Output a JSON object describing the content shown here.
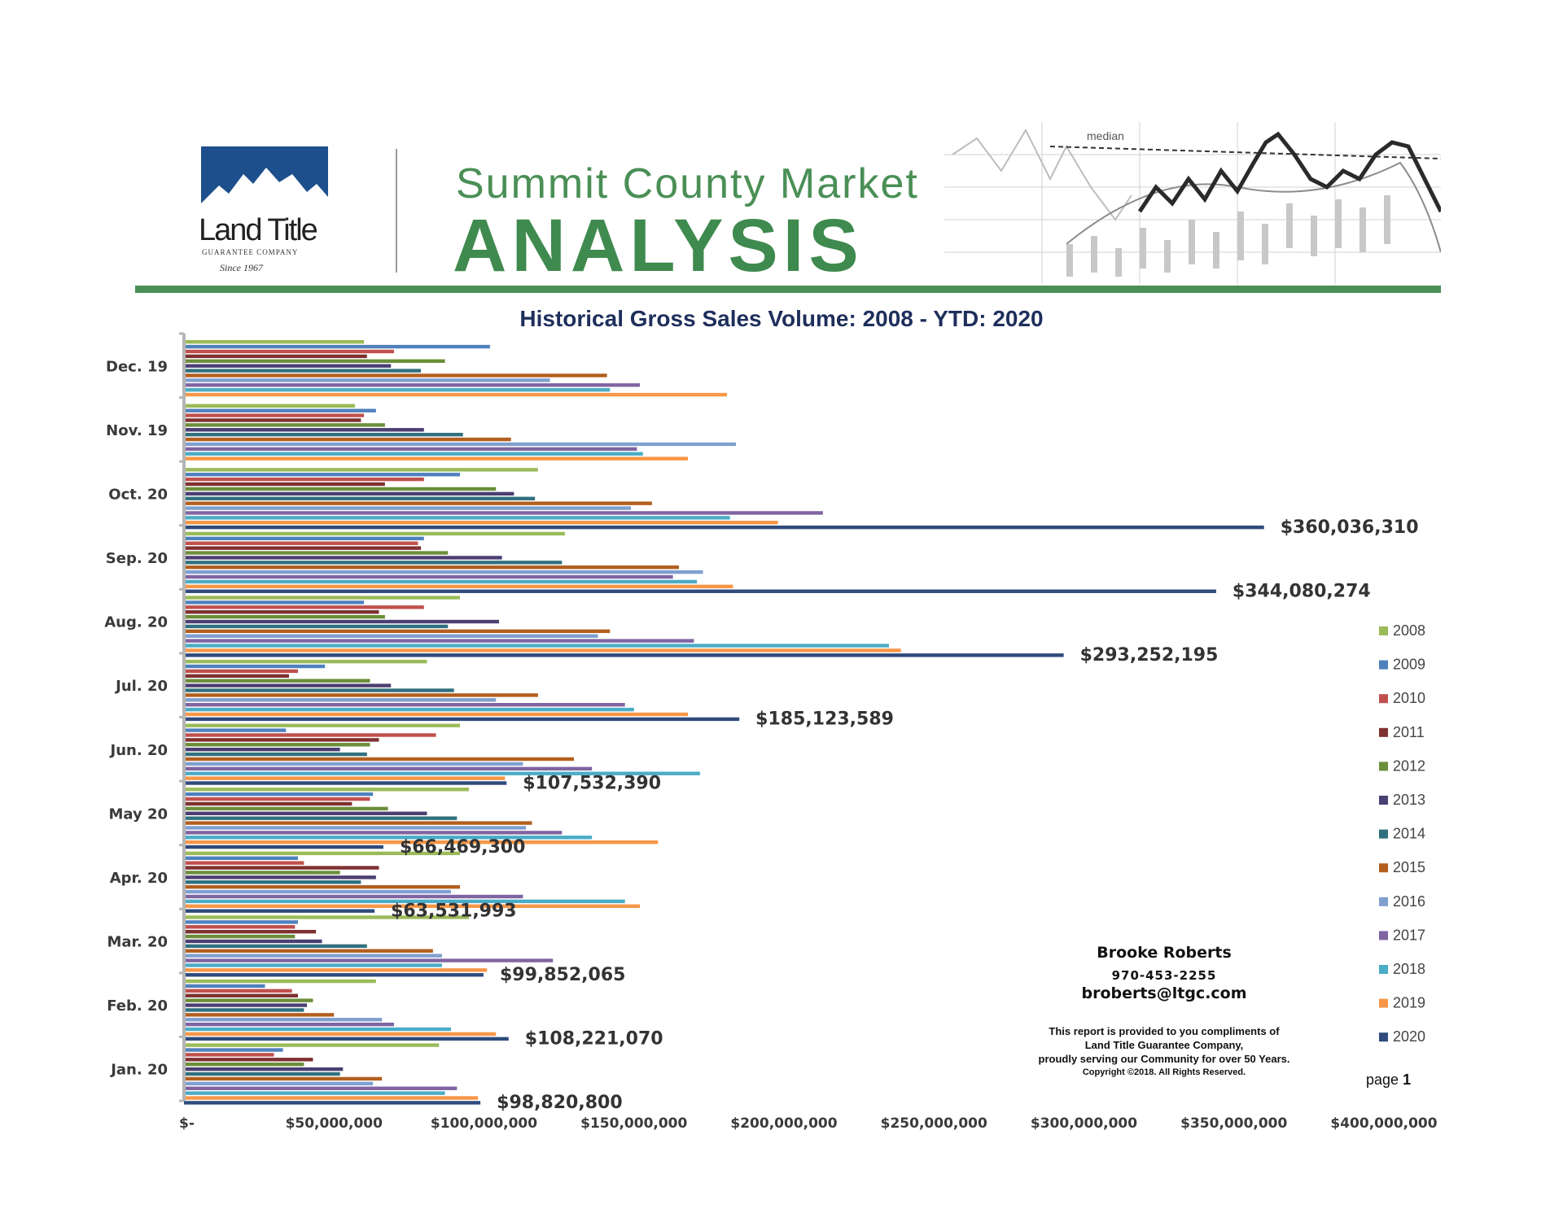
{
  "header": {
    "brand": "Land Title",
    "brand_sub": "GUARANTEE COMPANY",
    "brand_since": "Since 1967",
    "title_small": "Summit County Market",
    "title_big": "ANALYSIS",
    "deco_label": "median"
  },
  "contact": {
    "name": "Brooke Roberts",
    "phone": "970-453-2255",
    "email": "broberts@ltgc.com",
    "disclaimer_lines": [
      "This report is provided to you compliments of",
      "Land Title Guarantee Company,",
      "proudly serving our Community for over 50 Years."
    ],
    "copyright": "Copyright ©2018.  All Rights Reserved."
  },
  "page": {
    "label": "page",
    "number": "1"
  },
  "colors": {
    "brand_green": "#4a8f56",
    "brand_blue": "#1c4f8c",
    "title_navy": "#1f2f5c",
    "series": [
      "#9bbb59",
      "#4f81bd",
      "#c0504d",
      "#7f3030",
      "#6b8e3a",
      "#4b3f72",
      "#31707e",
      "#b35f1e",
      "#7f9fcf",
      "#8064a2",
      "#4bacc6",
      "#f79646",
      "#2f4b7c"
    ]
  },
  "chart_data": {
    "type": "bar",
    "orientation": "horizontal",
    "title": "Historical Gross Sales Volume: 2008 - YTD: 2020",
    "xlabel": "",
    "ylabel": "",
    "xlim": [
      0,
      400000000
    ],
    "x_ticks": [
      "$-",
      "$50,000,000",
      "$100,000,000",
      "$150,000,000",
      "$200,000,000",
      "$250,000,000",
      "$300,000,000",
      "$350,000,000",
      "$400,000,000"
    ],
    "legend_position": "right",
    "categories": [
      "Dec. 19",
      "Nov. 19",
      "Oct. 20",
      "Sep. 20",
      "Aug. 20",
      "Jul. 20",
      "Jun. 20",
      "May 20",
      "Apr. 20",
      "Mar. 20",
      "Feb. 20",
      "Jan. 20"
    ],
    "series": [
      {
        "name": "2008",
        "values": [
          60000000,
          57000000,
          118000000,
          127000000,
          92000000,
          81000000,
          92000000,
          95000000,
          92000000,
          95000000,
          64000000,
          85000000
        ]
      },
      {
        "name": "2009",
        "values": [
          102000000,
          64000000,
          92000000,
          80000000,
          60000000,
          47000000,
          34000000,
          63000000,
          38000000,
          38000000,
          27000000,
          33000000
        ]
      },
      {
        "name": "2010",
        "values": [
          70000000,
          60000000,
          80000000,
          78000000,
          80000000,
          38000000,
          84000000,
          62000000,
          40000000,
          37000000,
          36000000,
          30000000
        ]
      },
      {
        "name": "2011",
        "values": [
          61000000,
          59000000,
          67000000,
          79000000,
          65000000,
          35000000,
          65000000,
          56000000,
          65000000,
          44000000,
          38000000,
          43000000
        ]
      },
      {
        "name": "2012",
        "values": [
          87000000,
          67000000,
          104000000,
          88000000,
          67000000,
          62000000,
          62000000,
          68000000,
          52000000,
          37000000,
          43000000,
          40000000
        ]
      },
      {
        "name": "2013",
        "values": [
          69000000,
          80000000,
          110000000,
          106000000,
          105000000,
          69000000,
          52000000,
          81000000,
          64000000,
          46000000,
          41000000,
          53000000
        ]
      },
      {
        "name": "2014",
        "values": [
          79000000,
          93000000,
          117000000,
          126000000,
          88000000,
          90000000,
          61000000,
          91000000,
          59000000,
          61000000,
          40000000,
          52000000
        ]
      },
      {
        "name": "2015",
        "values": [
          141000000,
          109000000,
          156000000,
          165000000,
          142000000,
          118000000,
          130000000,
          116000000,
          92000000,
          83000000,
          50000000,
          66000000
        ]
      },
      {
        "name": "2016",
        "values": [
          122000000,
          184000000,
          149000000,
          173000000,
          138000000,
          104000000,
          113000000,
          114000000,
          89000000,
          86000000,
          66000000,
          63000000
        ]
      },
      {
        "name": "2017",
        "values": [
          152000000,
          151000000,
          213000000,
          163000000,
          170000000,
          147000000,
          136000000,
          126000000,
          113000000,
          123000000,
          70000000,
          91000000
        ]
      },
      {
        "name": "2018",
        "values": [
          142000000,
          153000000,
          182000000,
          171000000,
          235000000,
          150000000,
          172000000,
          136000000,
          147000000,
          86000000,
          89000000,
          87000000
        ]
      },
      {
        "name": "2019",
        "values": [
          181000000,
          168000000,
          198000000,
          183000000,
          239000000,
          168000000,
          107000000,
          158000000,
          152000000,
          101000000,
          104000000,
          98000000
        ]
      },
      {
        "name": "2020",
        "values": [
          null,
          null,
          360036310,
          344080274,
          293252195,
          185123589,
          107532390,
          66469300,
          63531993,
          99852065,
          108221070,
          98820800
        ]
      }
    ],
    "data_labels": [
      {
        "category": "Oct. 20",
        "series": "2020",
        "text": "$360,036,310"
      },
      {
        "category": "Sep. 20",
        "series": "2020",
        "text": "$344,080,274"
      },
      {
        "category": "Aug. 20",
        "series": "2020",
        "text": "$293,252,195"
      },
      {
        "category": "Jul. 20",
        "series": "2020",
        "text": "$185,123,589"
      },
      {
        "category": "Jun. 20",
        "series": "2020",
        "text": "$107,532,390"
      },
      {
        "category": "May 20",
        "series": "2020",
        "text": "$66,469,300"
      },
      {
        "category": "Apr. 20",
        "series": "2020",
        "text": "$63,531,993"
      },
      {
        "category": "Mar. 20",
        "series": "2020",
        "text": "$99,852,065"
      },
      {
        "category": "Feb. 20",
        "series": "2020",
        "text": "$108,221,070"
      },
      {
        "category": "Jan. 20",
        "series": "2020",
        "text": "$98,820,800"
      }
    ]
  }
}
